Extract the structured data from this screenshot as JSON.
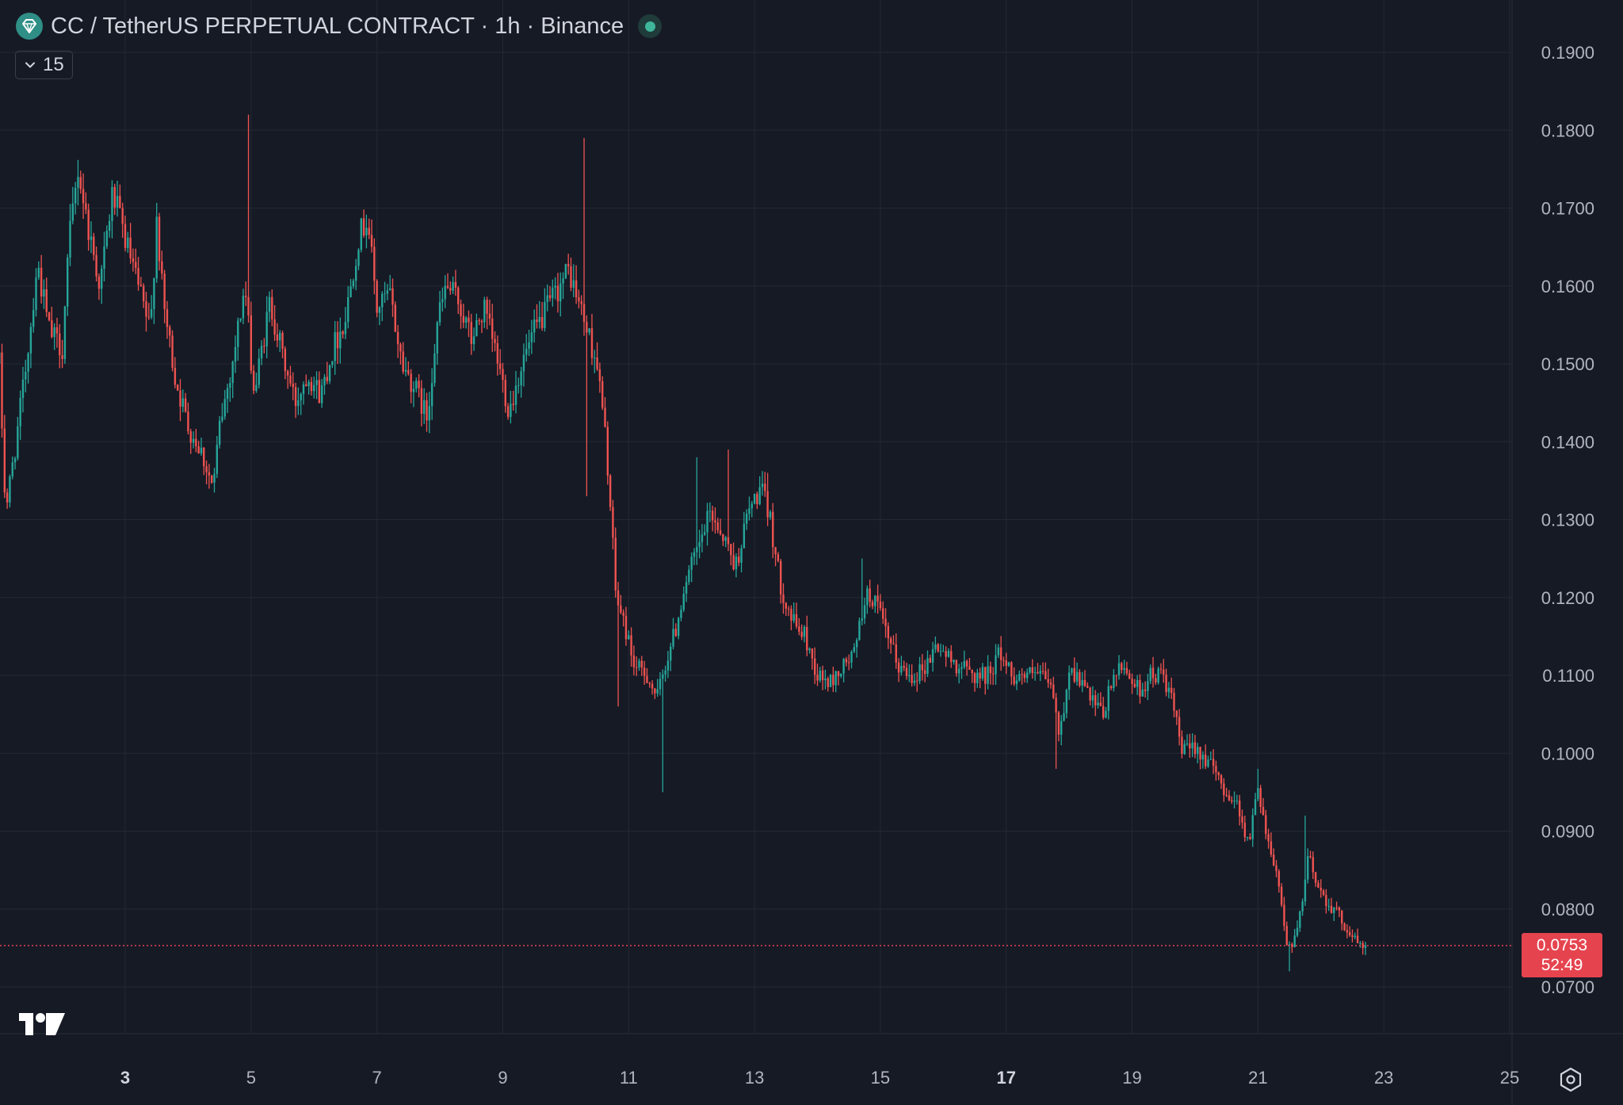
{
  "header": {
    "title": "CC / TetherUS PERPETUAL CONTRACT · 1h · Binance",
    "indicator_count": "15"
  },
  "price_tag": {
    "price": "0.0753",
    "countdown": "52:49"
  },
  "colors": {
    "background": "#161a25",
    "up": "#26a69a",
    "down": "#ef5350",
    "grid": "#242833",
    "price_line": "#e5444f"
  },
  "icons": [
    "exchange-logo-icon",
    "live-status-icon",
    "chevron-down-icon",
    "tradingview-logo-icon",
    "settings-icon"
  ],
  "chart_data": {
    "type": "candlestick",
    "interval": "1h",
    "x_axis": {
      "type": "date",
      "tick_labels": [
        "3",
        "5",
        "7",
        "9",
        "11",
        "13",
        "15",
        "17",
        "19",
        "21",
        "23",
        "25"
      ],
      "bold_ticks": [
        "3",
        "17"
      ],
      "range_days": [
        1.0,
        25.0
      ]
    },
    "y_axis": {
      "position": "right",
      "ylim": [
        0.062,
        0.195
      ],
      "tick_labels": [
        "0.0700",
        "0.0800",
        "0.0900",
        "0.1000",
        "0.1100",
        "0.1200",
        "0.1300",
        "0.1400",
        "0.1500",
        "0.1600",
        "0.1700",
        "0.1800",
        "0.1900"
      ]
    },
    "grid": true,
    "last_price": 0.0753,
    "price_path": [
      [
        1.0,
        0.15
      ],
      [
        1.1,
        0.131
      ],
      [
        1.3,
        0.142
      ],
      [
        1.5,
        0.155
      ],
      [
        1.6,
        0.163
      ],
      [
        1.8,
        0.154
      ],
      [
        2.0,
        0.152
      ],
      [
        2.1,
        0.165
      ],
      [
        2.25,
        0.175
      ],
      [
        2.4,
        0.168
      ],
      [
        2.6,
        0.16
      ],
      [
        2.8,
        0.172
      ],
      [
        3.0,
        0.166
      ],
      [
        3.2,
        0.16
      ],
      [
        3.4,
        0.154
      ],
      [
        3.5,
        0.169
      ],
      [
        3.6,
        0.158
      ],
      [
        3.8,
        0.148
      ],
      [
        4.0,
        0.142
      ],
      [
        4.2,
        0.139
      ],
      [
        4.4,
        0.134
      ],
      [
        4.5,
        0.142
      ],
      [
        4.7,
        0.15
      ],
      [
        4.9,
        0.16
      ],
      [
        5.05,
        0.146
      ],
      [
        5.3,
        0.158
      ],
      [
        5.5,
        0.151
      ],
      [
        5.7,
        0.145
      ],
      [
        5.9,
        0.149
      ],
      [
        6.1,
        0.146
      ],
      [
        6.3,
        0.152
      ],
      [
        6.5,
        0.156
      ],
      [
        6.7,
        0.166
      ],
      [
        6.85,
        0.169
      ],
      [
        7.0,
        0.157
      ],
      [
        7.2,
        0.159
      ],
      [
        7.4,
        0.15
      ],
      [
        7.6,
        0.147
      ],
      [
        7.8,
        0.143
      ],
      [
        7.95,
        0.155
      ],
      [
        8.1,
        0.16
      ],
      [
        8.3,
        0.158
      ],
      [
        8.5,
        0.153
      ],
      [
        8.7,
        0.157
      ],
      [
        8.9,
        0.151
      ],
      [
        9.1,
        0.144
      ],
      [
        9.3,
        0.15
      ],
      [
        9.5,
        0.154
      ],
      [
        9.7,
        0.157
      ],
      [
        9.9,
        0.16
      ],
      [
        10.05,
        0.162
      ],
      [
        10.2,
        0.158
      ],
      [
        10.35,
        0.154
      ],
      [
        10.5,
        0.15
      ],
      [
        10.65,
        0.139
      ],
      [
        10.8,
        0.12
      ],
      [
        10.95,
        0.116
      ],
      [
        11.1,
        0.111
      ],
      [
        11.3,
        0.11
      ],
      [
        11.45,
        0.107
      ],
      [
        11.6,
        0.112
      ],
      [
        11.75,
        0.116
      ],
      [
        11.9,
        0.122
      ],
      [
        12.1,
        0.126
      ],
      [
        12.3,
        0.131
      ],
      [
        12.5,
        0.128
      ],
      [
        12.7,
        0.124
      ],
      [
        12.9,
        0.131
      ],
      [
        13.1,
        0.134
      ],
      [
        13.25,
        0.13
      ],
      [
        13.4,
        0.122
      ],
      [
        13.6,
        0.117
      ],
      [
        13.8,
        0.115
      ],
      [
        14.0,
        0.11
      ],
      [
        14.2,
        0.109
      ],
      [
        14.4,
        0.111
      ],
      [
        14.6,
        0.113
      ],
      [
        14.75,
        0.12
      ],
      [
        14.9,
        0.12
      ],
      [
        15.1,
        0.115
      ],
      [
        15.3,
        0.111
      ],
      [
        15.5,
        0.11
      ],
      [
        15.7,
        0.111
      ],
      [
        15.9,
        0.114
      ],
      [
        16.1,
        0.112
      ],
      [
        16.3,
        0.111
      ],
      [
        16.5,
        0.11
      ],
      [
        16.7,
        0.11
      ],
      [
        16.9,
        0.113
      ],
      [
        17.1,
        0.11
      ],
      [
        17.3,
        0.11
      ],
      [
        17.5,
        0.11
      ],
      [
        17.7,
        0.109
      ],
      [
        17.85,
        0.102
      ],
      [
        18.0,
        0.111
      ],
      [
        18.2,
        0.109
      ],
      [
        18.4,
        0.106
      ],
      [
        18.55,
        0.105
      ],
      [
        18.7,
        0.11
      ],
      [
        18.9,
        0.111
      ],
      [
        19.1,
        0.108
      ],
      [
        19.3,
        0.11
      ],
      [
        19.5,
        0.11
      ],
      [
        19.65,
        0.106
      ],
      [
        19.8,
        0.1
      ],
      [
        20.0,
        0.101
      ],
      [
        20.2,
        0.099
      ],
      [
        20.35,
        0.097
      ],
      [
        20.5,
        0.095
      ],
      [
        20.7,
        0.093
      ],
      [
        20.85,
        0.088
      ],
      [
        21.0,
        0.096
      ],
      [
        21.15,
        0.089
      ],
      [
        21.3,
        0.085
      ],
      [
        21.45,
        0.076
      ],
      [
        21.55,
        0.075
      ],
      [
        21.7,
        0.08
      ],
      [
        21.8,
        0.087
      ],
      [
        21.95,
        0.083
      ],
      [
        22.1,
        0.081
      ],
      [
        22.3,
        0.079
      ],
      [
        22.45,
        0.077
      ],
      [
        22.6,
        0.0755
      ],
      [
        22.72,
        0.0753
      ]
    ],
    "spikes": [
      {
        "day": 4.95,
        "high": 0.182
      },
      {
        "day": 10.3,
        "high": 0.179
      },
      {
        "day": 10.35,
        "low": 0.133
      },
      {
        "day": 10.85,
        "low": 0.106
      },
      {
        "day": 11.55,
        "low": 0.095
      },
      {
        "day": 12.1,
        "high": 0.138
      },
      {
        "day": 12.6,
        "high": 0.139
      },
      {
        "day": 13.2,
        "high": 0.136
      },
      {
        "day": 14.7,
        "high": 0.125
      },
      {
        "day": 17.8,
        "low": 0.098
      },
      {
        "day": 21.0,
        "high": 0.098
      },
      {
        "day": 21.5,
        "low": 0.072
      },
      {
        "day": 21.75,
        "high": 0.092
      }
    ]
  }
}
